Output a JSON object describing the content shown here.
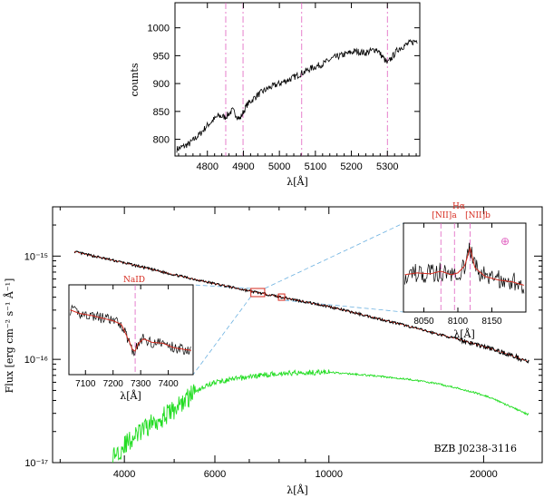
{
  "top_panel": {
    "ylabel": "counts",
    "xlabel": "λ[Å]",
    "xticks": [
      "4800",
      "4900",
      "5000",
      "5100",
      "5200",
      "5300"
    ],
    "yticks": [
      "800",
      "850",
      "900",
      "950",
      "1000"
    ]
  },
  "main_panel": {
    "ylabel": "Flux  [erg cm⁻² s⁻¹ Å⁻¹]",
    "xlabel": "λ[Å]",
    "xticks": [
      "4000",
      "6000",
      "10000",
      "20000"
    ],
    "yticks": [
      "10⁻¹⁵",
      "10⁻¹⁶",
      "10⁻¹⁷"
    ],
    "object_label": "BZB J0238-3116"
  },
  "inset_left": {
    "line_label": "NaID",
    "xlabel": "λ[Å]",
    "xticks": [
      "7100",
      "7200",
      "7300",
      "7400"
    ]
  },
  "inset_right": {
    "label_nii_a": "[NII]a",
    "label_ha": "Hα",
    "label_nii_b": "[NII]b",
    "telluric_symbol": "⊕",
    "xlabel": "λ[Å]",
    "xticks": [
      "8050",
      "8100",
      "8150"
    ]
  },
  "colors": {
    "spectrum": "#000000",
    "model": "#d62a1e",
    "host_galaxy": "#22dd22",
    "marker_lines": "#e060c0",
    "zoom_lines": "#6ab0e0"
  },
  "chart_data": [
    {
      "type": "line",
      "title": "",
      "xlabel": "λ[Å]",
      "ylabel": "counts",
      "xlim": [
        4710,
        5390
      ],
      "ylim": [
        770,
        1045
      ],
      "marker_lines_x": [
        4851,
        4899,
        5062,
        5300
      ],
      "series": [
        {
          "x": [
            4715,
            4750,
            4780,
            4800,
            4830,
            4850,
            4870,
            4890,
            4910,
            4940,
            4970,
            5000,
            5030,
            5060,
            5090,
            5120,
            5150,
            5180,
            5210,
            5240,
            5270,
            5300,
            5330,
            5360,
            5385
          ],
          "values": [
            782,
            792,
            810,
            825,
            842,
            840,
            852,
            836,
            862,
            880,
            892,
            900,
            908,
            918,
            928,
            935,
            946,
            952,
            958,
            955,
            962,
            936,
            962,
            972,
            978
          ]
        }
      ]
    },
    {
      "type": "line",
      "title": "",
      "xlabel": "λ[Å]",
      "ylabel": "Flux  [erg cm⁻² s⁻¹ Å⁻¹]",
      "xscale": "log",
      "yscale": "log",
      "xlim": [
        2900,
        26000
      ],
      "ylim": [
        1e-17,
        3e-15
      ],
      "series": [
        {
          "name": "",
          "role": "observed spectrum",
          "x": [
            3200,
            4000,
            5000,
            6000,
            7000,
            8000,
            9000,
            10000,
            12000,
            14000,
            16000,
            18000,
            20000,
            22000,
            24500
          ],
          "values": [
            1.1e-15,
            8.6e-16,
            6.6e-16,
            5.4e-16,
            4.6e-16,
            4.05e-16,
            3.6e-16,
            3.25e-16,
            2.6e-16,
            2.15e-16,
            1.8e-16,
            1.55e-16,
            1.33e-16,
            1.15e-16,
            9.5e-17
          ]
        },
        {
          "name": "",
          "role": "host galaxy",
          "x": [
            3800,
            4000,
            4500,
            5000,
            5500,
            6000,
            6500,
            7000,
            7500,
            8000,
            9000,
            10000,
            12000,
            14000,
            16000,
            18000,
            20000,
            22000,
            24500
          ],
          "values": [
            1.15e-17,
            1.5e-17,
            2.4e-17,
            3.3e-17,
            5e-17,
            6e-17,
            6.4e-17,
            6.8e-17,
            7.1e-17,
            7.3e-17,
            7.5e-17,
            7.5e-17,
            7e-17,
            6.5e-17,
            5.9e-17,
            5.2e-17,
            4.5e-17,
            3.7e-17,
            2.9e-17
          ]
        }
      ],
      "zoom_boxes": [
        {
          "x_range": [
            7050,
            7500
          ]
        },
        {
          "x_range": [
            7980,
            8200
          ]
        }
      ]
    },
    {
      "type": "line",
      "title": "",
      "xlabel": "λ[Å]",
      "xlim": [
        7040,
        7490
      ],
      "ylim": [
        0,
        1
      ],
      "marker_lines_x": [
        7280
      ],
      "series": [
        {
          "x": [
            7045,
            7080,
            7120,
            7160,
            7200,
            7230,
            7260,
            7270,
            7280,
            7290,
            7310,
            7340,
            7380,
            7420,
            7460,
            7485
          ],
          "values": [
            0.72,
            0.68,
            0.66,
            0.63,
            0.6,
            0.56,
            0.36,
            0.28,
            0.26,
            0.34,
            0.4,
            0.36,
            0.35,
            0.3,
            0.28,
            0.27
          ]
        }
      ]
    },
    {
      "type": "line",
      "title": "",
      "xlabel": "λ[Å]",
      "xlim": [
        8020,
        8200
      ],
      "ylim": [
        0,
        1
      ],
      "marker_lines_x": [
        8075,
        8095,
        8118
      ],
      "series": [
        {
          "x": [
            8022,
            8040,
            8060,
            8075,
            8090,
            8100,
            8110,
            8118,
            8125,
            8140,
            8160,
            8180,
            8198
          ],
          "values": [
            0.42,
            0.44,
            0.43,
            0.46,
            0.42,
            0.44,
            0.52,
            0.72,
            0.5,
            0.4,
            0.36,
            0.34,
            0.3
          ]
        }
      ]
    }
  ]
}
